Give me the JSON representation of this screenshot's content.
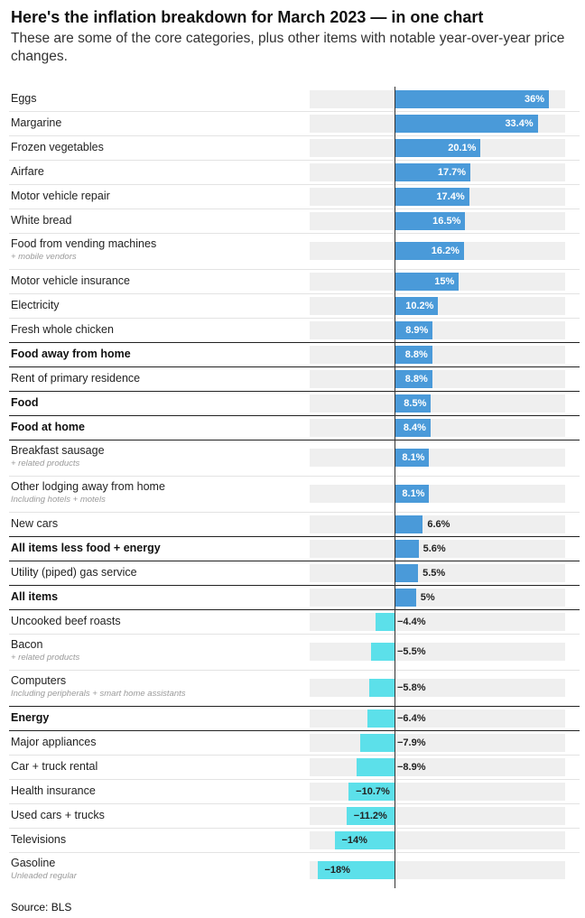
{
  "header": {
    "title": "Here's the inflation breakdown for March 2023 — in one chart",
    "subtitle": "These are some of the core categories, plus other items with notable year-over-year price changes."
  },
  "colors": {
    "positive": "#4a9ad9",
    "negative": "#5ce0ea",
    "track": "#efefef"
  },
  "chart_data": {
    "type": "bar",
    "orientation": "horizontal",
    "xlim": [
      -20,
      40
    ],
    "unit": "%",
    "categories": [
      "Eggs",
      "Margarine",
      "Frozen vegetables",
      "Airfare",
      "Motor vehicle repair",
      "White bread",
      "Food from vending machines",
      "Motor vehicle insurance",
      "Electricity",
      "Fresh whole chicken",
      "Food away from home",
      "Rent of primary residence",
      "Food",
      "Food at home",
      "Breakfast sausage",
      "Other lodging away from home",
      "New cars",
      "All items less food + energy",
      "Utility (piped) gas service",
      "All items",
      "Uncooked beef roasts",
      "Bacon",
      "Computers",
      "Energy",
      "Major appliances",
      "Car + truck rental",
      "Health insurance",
      "Used cars + trucks",
      "Televisions",
      "Gasoline"
    ],
    "values": [
      36,
      33.4,
      20.1,
      17.7,
      17.4,
      16.5,
      16.2,
      15,
      10.2,
      8.9,
      8.8,
      8.8,
      8.5,
      8.4,
      8.1,
      8.1,
      6.6,
      5.6,
      5.5,
      5,
      -4.4,
      -5.5,
      -5.8,
      -6.4,
      -7.9,
      -8.9,
      -10.7,
      -11.2,
      -14,
      -18
    ],
    "value_labels": [
      "36%",
      "33.4%",
      "20.1%",
      "17.7%",
      "17.4%",
      "16.5%",
      "16.2%",
      "15%",
      "10.2%",
      "8.9%",
      "8.8%",
      "8.8%",
      "8.5%",
      "8.4%",
      "8.1%",
      "8.1%",
      "6.6%",
      "5.6%",
      "5.5%",
      "5%",
      "−4.4%",
      "−5.5%",
      "−5.8%",
      "−6.4%",
      "−7.9%",
      "−8.9%",
      "−10.7%",
      "−11.2%",
      "−14%",
      "−18%"
    ],
    "sublabels": [
      "",
      "",
      "",
      "",
      "",
      "",
      "+ mobile vendors",
      "",
      "",
      "",
      "",
      "",
      "",
      "",
      "+ related products",
      "Including hotels + motels",
      "",
      "",
      "",
      "",
      "",
      "+ related products",
      "Including peripherals + smart home assistants",
      "",
      "",
      "",
      "",
      "",
      "",
      "Unleaded regular"
    ],
    "bold": [
      false,
      false,
      false,
      false,
      false,
      false,
      false,
      false,
      false,
      false,
      true,
      false,
      true,
      true,
      false,
      false,
      false,
      true,
      false,
      true,
      false,
      false,
      false,
      true,
      false,
      false,
      false,
      false,
      false,
      false
    ]
  },
  "footer": {
    "source": "Source: BLS"
  }
}
